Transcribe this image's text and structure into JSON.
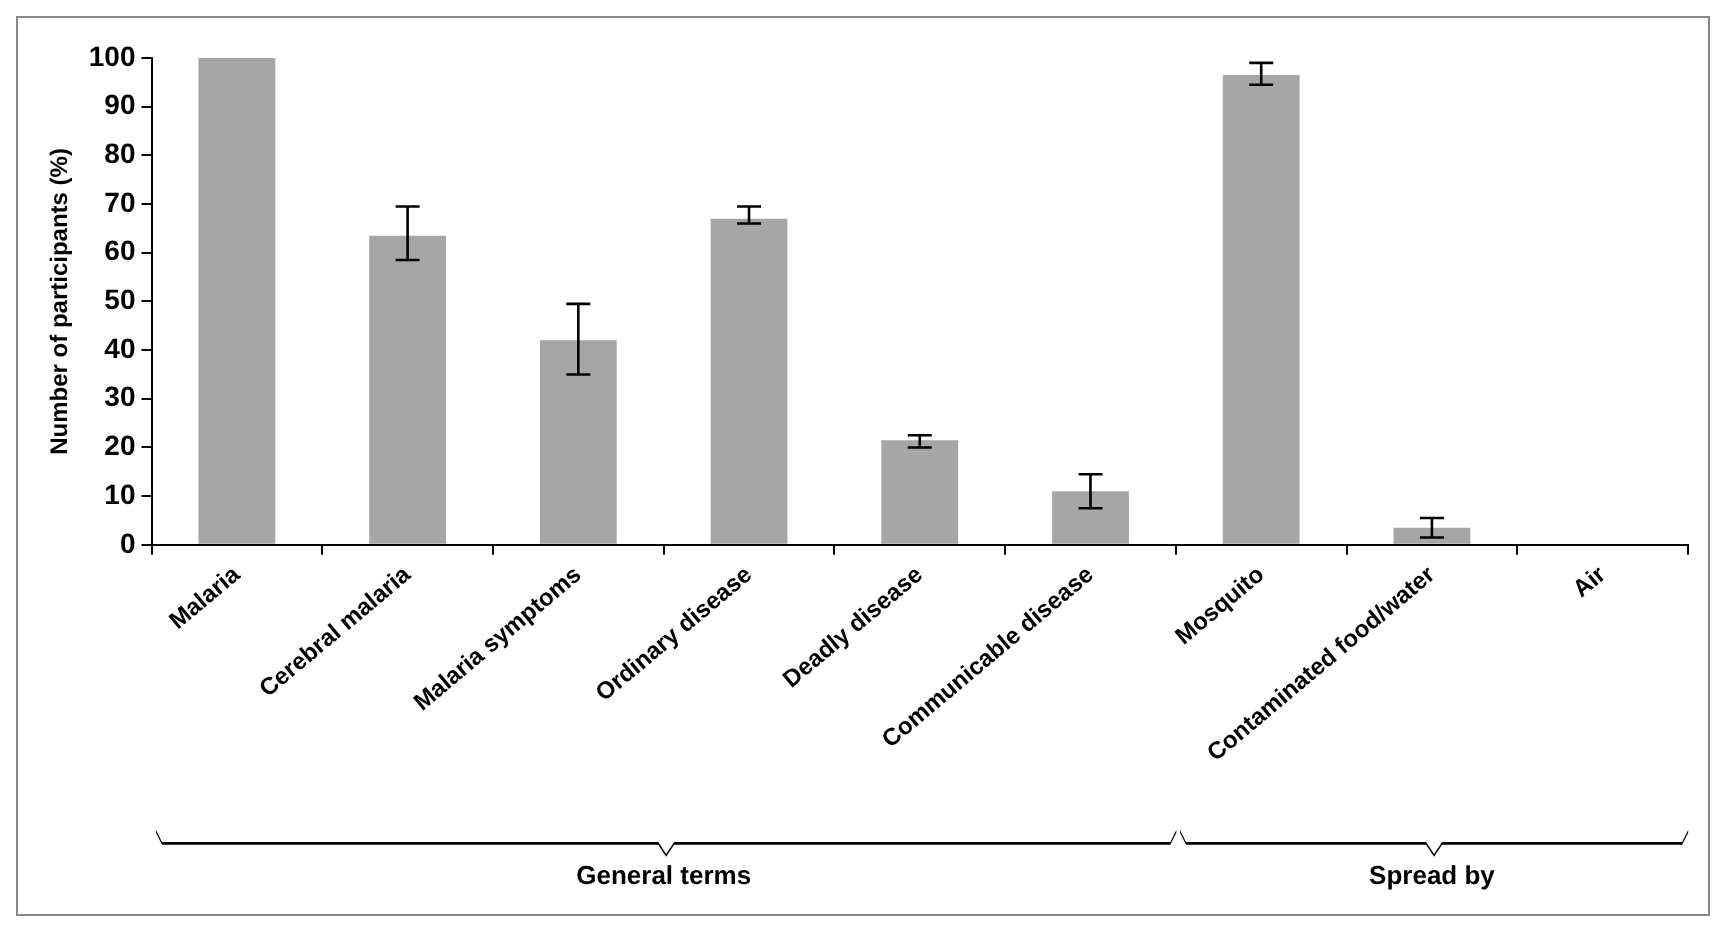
{
  "chart_data": {
    "type": "bar",
    "ylabel": "Number of participants (%)",
    "categories": [
      "Malaria",
      "Cerebral malaria",
      "Malaria symptoms",
      "Ordinary disease",
      "Deadly disease",
      "Communicable disease",
      "Mosquito",
      "Contaminated food/water",
      "Air"
    ],
    "values": [
      100,
      63.5,
      42,
      67,
      21.5,
      11,
      96.5,
      3.5,
      0
    ],
    "errors": [
      null,
      [
        58.5,
        69.5
      ],
      [
        35,
        49.5
      ],
      [
        66,
        69.5
      ],
      [
        20,
        22.5
      ],
      [
        7.5,
        14.5
      ],
      [
        94.5,
        99
      ],
      [
        1.5,
        5.5
      ],
      null
    ],
    "color": "#a6a6a6",
    "ylim": [
      0,
      100
    ],
    "yticks": [
      0,
      10,
      20,
      30,
      40,
      50,
      60,
      70,
      80,
      90,
      100
    ],
    "legend": false,
    "annotations": [
      "General terms",
      "Spread by"
    ]
  }
}
